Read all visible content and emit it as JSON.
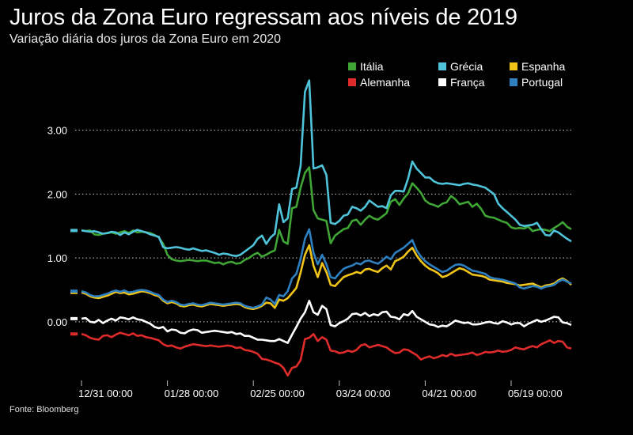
{
  "title": "Juros da Zona Euro regressam aos níveis de 2019",
  "subtitle": "Variação diária dos juros da Zona Euro em 2020",
  "source": "Fonte: Bloomberg",
  "chart_data": {
    "type": "line",
    "title": "Juros da Zona Euro regressam aos níveis de 2019",
    "subtitle": "Variação diária dos juros da Zona Euro em 2020",
    "xlabel": "",
    "ylabel": "",
    "ylim": [
      -0.88,
      3.8
    ],
    "yticks": [
      0.0,
      1.0,
      2.0,
      3.0
    ],
    "ytick_labels": [
      "0.00",
      "1.00",
      "2.00",
      "3.00"
    ],
    "xticks": [
      0,
      20,
      40,
      60,
      80,
      100
    ],
    "xtick_labels": [
      "12/31 00:00",
      "01/28 00:00",
      "02/25 00:00",
      "03/24 00:00",
      "04/21 00:00",
      "05/19 00:00"
    ],
    "grid": "horizontal-dotted",
    "legend": "top-right",
    "series": [
      {
        "name": "Itália",
        "color": "#3fa535",
        "values": [
          1.43,
          1.42,
          1.43,
          1.37,
          1.36,
          1.38,
          1.39,
          1.4,
          1.38,
          1.4,
          1.42,
          1.39,
          1.43,
          1.4,
          1.41,
          1.4,
          1.39,
          1.36,
          1.32,
          1.22,
          1.05,
          0.98,
          0.96,
          0.95,
          0.96,
          0.97,
          0.96,
          0.95,
          0.96,
          0.96,
          0.94,
          0.92,
          0.93,
          0.9,
          0.93,
          0.94,
          0.91,
          0.92,
          0.97,
          1.0,
          1.05,
          1.08,
          1.02,
          1.05,
          1.09,
          1.12,
          1.44,
          1.26,
          1.22,
          1.78,
          1.8,
          2.1,
          2.33,
          2.42,
          1.75,
          1.62,
          1.6,
          1.58,
          1.23,
          1.35,
          1.4,
          1.45,
          1.47,
          1.58,
          1.6,
          1.52,
          1.6,
          1.66,
          1.62,
          1.6,
          1.65,
          1.7,
          1.88,
          1.92,
          1.83,
          1.93,
          2.01,
          2.17,
          2.1,
          2.02,
          1.9,
          1.85,
          1.83,
          1.8,
          1.85,
          1.87,
          1.97,
          1.92,
          1.84,
          1.86,
          1.88,
          1.8,
          1.85,
          1.77,
          1.66,
          1.64,
          1.63,
          1.6,
          1.57,
          1.55,
          1.48,
          1.46,
          1.47,
          1.46,
          1.49,
          1.42,
          1.44,
          1.45,
          1.44,
          1.42,
          1.47,
          1.51,
          1.56,
          1.49,
          1.45
        ]
      },
      {
        "name": "Grécia",
        "color": "#4fc3d9",
        "values": [
          1.43,
          1.42,
          1.41,
          1.42,
          1.4,
          1.38,
          1.39,
          1.41,
          1.4,
          1.36,
          1.4,
          1.37,
          1.41,
          1.44,
          1.42,
          1.4,
          1.37,
          1.35,
          1.33,
          1.17,
          1.15,
          1.16,
          1.17,
          1.16,
          1.14,
          1.13,
          1.15,
          1.13,
          1.11,
          1.12,
          1.1,
          1.08,
          1.05,
          1.07,
          1.06,
          1.04,
          1.03,
          1.05,
          1.1,
          1.15,
          1.2,
          1.3,
          1.35,
          1.22,
          1.32,
          1.38,
          1.84,
          1.56,
          1.62,
          2.08,
          2.1,
          2.44,
          3.6,
          3.78,
          2.4,
          2.42,
          2.45,
          2.3,
          1.55,
          1.53,
          1.58,
          1.66,
          1.68,
          1.8,
          1.78,
          1.74,
          1.8,
          1.9,
          1.85,
          1.8,
          1.81,
          1.78,
          1.98,
          2.05,
          2.05,
          2.04,
          2.24,
          2.51,
          2.4,
          2.33,
          2.26,
          2.26,
          2.2,
          2.17,
          2.16,
          2.17,
          2.16,
          2.15,
          2.14,
          2.16,
          2.17,
          2.15,
          2.14,
          2.12,
          2.1,
          2.05,
          2.0,
          1.85,
          1.78,
          1.72,
          1.66,
          1.6,
          1.52,
          1.5,
          1.51,
          1.52,
          1.55,
          1.45,
          1.36,
          1.35,
          1.43,
          1.4,
          1.35,
          1.3,
          1.26
        ]
      },
      {
        "name": "Espanha",
        "color": "#f0c419",
        "values": [
          0.46,
          0.44,
          0.4,
          0.38,
          0.37,
          0.39,
          0.41,
          0.44,
          0.47,
          0.45,
          0.46,
          0.43,
          0.44,
          0.46,
          0.48,
          0.47,
          0.45,
          0.42,
          0.4,
          0.33,
          0.29,
          0.31,
          0.29,
          0.25,
          0.24,
          0.26,
          0.27,
          0.25,
          0.24,
          0.26,
          0.28,
          0.27,
          0.26,
          0.25,
          0.26,
          0.27,
          0.28,
          0.27,
          0.23,
          0.21,
          0.2,
          0.22,
          0.25,
          0.3,
          0.29,
          0.22,
          0.35,
          0.33,
          0.37,
          0.45,
          0.53,
          0.77,
          1.05,
          1.2,
          0.88,
          0.7,
          0.92,
          0.78,
          0.58,
          0.56,
          0.63,
          0.7,
          0.73,
          0.75,
          0.78,
          0.76,
          0.82,
          0.83,
          0.8,
          0.78,
          0.84,
          0.88,
          0.82,
          0.95,
          0.98,
          1.02,
          1.1,
          1.16,
          1.04,
          0.95,
          0.88,
          0.83,
          0.8,
          0.76,
          0.7,
          0.72,
          0.76,
          0.8,
          0.84,
          0.82,
          0.78,
          0.74,
          0.73,
          0.72,
          0.7,
          0.66,
          0.65,
          0.64,
          0.63,
          0.61,
          0.6,
          0.59,
          0.57,
          0.58,
          0.59,
          0.6,
          0.57,
          0.54,
          0.57,
          0.58,
          0.6,
          0.65,
          0.68,
          0.64,
          0.58
        ]
      },
      {
        "name": "Alemanha",
        "color": "#e02b2b",
        "values": [
          -0.19,
          -0.21,
          -0.25,
          -0.27,
          -0.28,
          -0.22,
          -0.21,
          -0.24,
          -0.2,
          -0.17,
          -0.19,
          -0.21,
          -0.18,
          -0.22,
          -0.21,
          -0.24,
          -0.25,
          -0.27,
          -0.29,
          -0.35,
          -0.38,
          -0.37,
          -0.4,
          -0.42,
          -0.39,
          -0.37,
          -0.35,
          -0.36,
          -0.37,
          -0.38,
          -0.37,
          -0.38,
          -0.39,
          -0.38,
          -0.37,
          -0.38,
          -0.41,
          -0.4,
          -0.44,
          -0.45,
          -0.47,
          -0.5,
          -0.58,
          -0.59,
          -0.61,
          -0.64,
          -0.66,
          -0.72,
          -0.84,
          -0.72,
          -0.7,
          -0.6,
          -0.27,
          -0.25,
          -0.19,
          -0.3,
          -0.24,
          -0.28,
          -0.45,
          -0.46,
          -0.49,
          -0.48,
          -0.45,
          -0.47,
          -0.44,
          -0.37,
          -0.35,
          -0.4,
          -0.38,
          -0.36,
          -0.38,
          -0.4,
          -0.45,
          -0.49,
          -0.48,
          -0.43,
          -0.44,
          -0.48,
          -0.52,
          -0.59,
          -0.56,
          -0.54,
          -0.57,
          -0.55,
          -0.52,
          -0.54,
          -0.5,
          -0.53,
          -0.52,
          -0.51,
          -0.5,
          -0.48,
          -0.52,
          -0.5,
          -0.47,
          -0.48,
          -0.47,
          -0.45,
          -0.47,
          -0.46,
          -0.44,
          -0.4,
          -0.42,
          -0.43,
          -0.4,
          -0.38,
          -0.4,
          -0.35,
          -0.32,
          -0.29,
          -0.33,
          -0.3,
          -0.31,
          -0.4,
          -0.42
        ]
      },
      {
        "name": "França",
        "color": "#ffffff",
        "values": [
          0.05,
          0.06,
          0.0,
          -0.01,
          0.03,
          -0.02,
          0.02,
          0.05,
          0.02,
          0.07,
          0.06,
          0.04,
          0.07,
          0.04,
          0.03,
          0.0,
          -0.03,
          -0.08,
          -0.1,
          -0.08,
          -0.15,
          -0.12,
          -0.13,
          -0.17,
          -0.18,
          -0.14,
          -0.12,
          -0.13,
          -0.17,
          -0.16,
          -0.15,
          -0.14,
          -0.15,
          -0.16,
          -0.17,
          -0.16,
          -0.19,
          -0.18,
          -0.22,
          -0.22,
          -0.25,
          -0.28,
          -0.28,
          -0.29,
          -0.3,
          -0.3,
          -0.27,
          -0.3,
          -0.33,
          -0.2,
          -0.08,
          0.05,
          0.15,
          0.33,
          0.15,
          0.11,
          0.25,
          0.2,
          -0.05,
          -0.07,
          -0.02,
          0.01,
          0.05,
          0.12,
          0.13,
          0.1,
          0.14,
          0.09,
          0.12,
          0.1,
          0.15,
          0.16,
          0.08,
          0.07,
          0.04,
          0.12,
          0.1,
          0.17,
          0.08,
          0.04,
          0.0,
          -0.04,
          -0.05,
          -0.08,
          -0.06,
          -0.07,
          -0.03,
          0.02,
          0.0,
          -0.02,
          -0.01,
          -0.04,
          -0.04,
          -0.03,
          -0.01,
          0.0,
          -0.02,
          -0.03,
          0.01,
          -0.01,
          -0.04,
          -0.02,
          -0.02,
          -0.07,
          -0.03,
          0.0,
          0.03,
          0.0,
          0.02,
          0.05,
          0.08,
          0.07,
          -0.01,
          -0.02,
          -0.05
        ]
      },
      {
        "name": "Portugal",
        "color": "#2e7fbf",
        "values": [
          0.48,
          0.46,
          0.42,
          0.4,
          0.4,
          0.42,
          0.44,
          0.47,
          0.49,
          0.47,
          0.49,
          0.46,
          0.47,
          0.49,
          0.5,
          0.49,
          0.47,
          0.44,
          0.42,
          0.35,
          0.31,
          0.33,
          0.31,
          0.27,
          0.26,
          0.28,
          0.29,
          0.27,
          0.26,
          0.28,
          0.3,
          0.29,
          0.28,
          0.27,
          0.28,
          0.29,
          0.3,
          0.29,
          0.25,
          0.23,
          0.22,
          0.24,
          0.27,
          0.38,
          0.35,
          0.28,
          0.42,
          0.4,
          0.48,
          0.68,
          0.75,
          0.98,
          1.3,
          1.45,
          1.08,
          0.9,
          1.05,
          0.9,
          0.7,
          0.68,
          0.76,
          0.83,
          0.86,
          0.88,
          0.92,
          0.9,
          0.95,
          0.96,
          0.93,
          0.91,
          0.96,
          1.02,
          0.98,
          1.08,
          1.12,
          1.16,
          1.22,
          1.28,
          1.12,
          1.02,
          0.95,
          0.9,
          0.86,
          0.82,
          0.78,
          0.8,
          0.85,
          0.89,
          0.9,
          0.88,
          0.84,
          0.8,
          0.79,
          0.77,
          0.75,
          0.7,
          0.68,
          0.67,
          0.66,
          0.64,
          0.62,
          0.6,
          0.54,
          0.52,
          0.54,
          0.56,
          0.55,
          0.52,
          0.55,
          0.56,
          0.58,
          0.63,
          0.66,
          0.63,
          0.6
        ]
      }
    ]
  }
}
